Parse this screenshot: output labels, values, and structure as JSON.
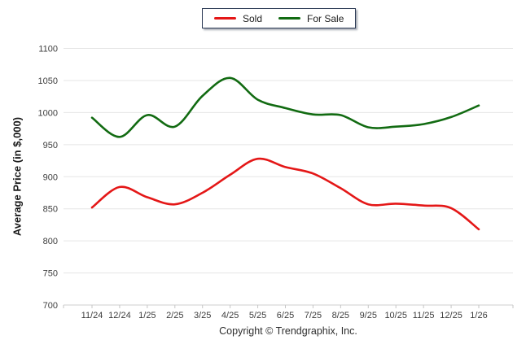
{
  "y_axis_title": "Average Price (in $,000)",
  "legend": {
    "items": [
      {
        "label": "Sold",
        "color": "#e41717"
      },
      {
        "label": "For Sale",
        "color": "#126b12"
      }
    ]
  },
  "footer": {
    "copyright": "Copyright © Trendgraphix, Inc."
  },
  "chart_data": {
    "type": "line",
    "title": "",
    "xlabel": "",
    "ylabel": "Average Price (in $,000)",
    "ylim": [
      700,
      1100
    ],
    "ytick_step": 50,
    "grid": true,
    "legend_position": "top-center",
    "smoothing": "spline",
    "categories": [
      "11/24",
      "12/24",
      "1/25",
      "2/25",
      "3/25",
      "4/25",
      "5/25",
      "6/25",
      "7/25",
      "8/25",
      "9/25",
      "10/25",
      "11/25",
      "12/25",
      "1/26"
    ],
    "series": [
      {
        "name": "Sold",
        "color": "#e41717",
        "values": [
          852,
          884,
          868,
          857,
          875,
          903,
          928,
          915,
          905,
          882,
          857,
          858,
          855,
          851,
          818
        ]
      },
      {
        "name": "For Sale",
        "color": "#126b12",
        "values": [
          992,
          962,
          996,
          978,
          1026,
          1054,
          1020,
          1007,
          997,
          996,
          977,
          978,
          982,
          993,
          1011
        ]
      }
    ]
  }
}
